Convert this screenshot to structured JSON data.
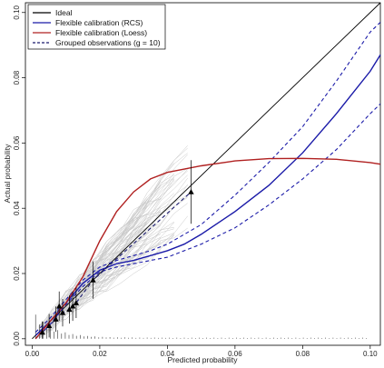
{
  "chart_data": {
    "type": "line",
    "xlabel": "Predicted probability",
    "ylabel": "Actual probability",
    "xlim": [
      -0.002,
      0.103
    ],
    "ylim": [
      -0.002,
      0.103
    ],
    "x_ticks": [
      0.0,
      0.02,
      0.04,
      0.06,
      0.08,
      0.1
    ],
    "x_tick_labels": [
      "0.00",
      "0.02",
      "0.04",
      "0.06",
      "0.08",
      "0.10"
    ],
    "y_ticks": [
      0.0,
      0.02,
      0.04,
      0.06,
      0.08,
      0.1
    ],
    "y_tick_labels": [
      "0.00",
      "0.02",
      "0.04",
      "0.06",
      "0.08",
      "0.10"
    ],
    "grid": false,
    "legend_position": "top-left",
    "legend": [
      {
        "label": "Ideal",
        "color": "#000000",
        "dash": "solid"
      },
      {
        "label": "Flexible calibration (RCS)",
        "color": "#1a1aa8",
        "dash": "solid"
      },
      {
        "label": "Flexible calibration (Loess)",
        "color": "#b02020",
        "dash": "solid"
      },
      {
        "label": "Grouped observations (g = 10)",
        "color": "#1a1a6e",
        "dash": "dashed"
      }
    ],
    "series": [
      {
        "name": "Ideal",
        "color": "#000000",
        "x": [
          0.0,
          0.103
        ],
        "y": [
          0.0,
          0.103
        ]
      },
      {
        "name": "Flexible calibration (RCS)",
        "color": "#1a1aa8",
        "x": [
          0.001,
          0.005,
          0.01,
          0.015,
          0.02,
          0.025,
          0.03,
          0.035,
          0.04,
          0.045,
          0.05,
          0.06,
          0.07,
          0.08,
          0.09,
          0.1,
          0.103
        ],
        "y": [
          0.001,
          0.005,
          0.011,
          0.017,
          0.021,
          0.023,
          0.024,
          0.0255,
          0.027,
          0.029,
          0.032,
          0.039,
          0.047,
          0.057,
          0.069,
          0.082,
          0.087
        ]
      },
      {
        "name": "Flexible calibration (RCS) lower",
        "color": "#1a1aa8",
        "x": [
          0.001,
          0.005,
          0.01,
          0.015,
          0.02,
          0.025,
          0.03,
          0.035,
          0.04,
          0.045,
          0.05,
          0.06,
          0.07,
          0.08,
          0.09,
          0.1,
          0.103
        ],
        "y": [
          0.0,
          0.004,
          0.0105,
          0.016,
          0.0205,
          0.022,
          0.023,
          0.024,
          0.025,
          0.027,
          0.029,
          0.034,
          0.041,
          0.049,
          0.058,
          0.069,
          0.072
        ]
      },
      {
        "name": "Flexible calibration (RCS) upper",
        "color": "#1a1aa8",
        "x": [
          0.001,
          0.005,
          0.01,
          0.015,
          0.02,
          0.025,
          0.03,
          0.035,
          0.04,
          0.045,
          0.05,
          0.06,
          0.07,
          0.08,
          0.09,
          0.1,
          0.103
        ],
        "y": [
          0.002,
          0.006,
          0.012,
          0.018,
          0.022,
          0.024,
          0.0255,
          0.027,
          0.029,
          0.032,
          0.035,
          0.044,
          0.054,
          0.065,
          0.079,
          0.094,
          0.097
        ]
      },
      {
        "name": "Flexible calibration (Loess)",
        "color": "#b02020",
        "x": [
          0.001,
          0.005,
          0.01,
          0.015,
          0.02,
          0.025,
          0.03,
          0.035,
          0.04,
          0.05,
          0.06,
          0.07,
          0.08,
          0.09,
          0.1,
          0.103
        ],
        "y": [
          0.0,
          0.005,
          0.011,
          0.019,
          0.03,
          0.039,
          0.045,
          0.049,
          0.051,
          0.053,
          0.0545,
          0.0552,
          0.0553,
          0.055,
          0.054,
          0.0535
        ]
      },
      {
        "name": "Grouped observations (g = 10)",
        "color": "#1a1a6e",
        "x": [
          0.003,
          0.005,
          0.007,
          0.008,
          0.009,
          0.011,
          0.012,
          0.013,
          0.018,
          0.047
        ],
        "y": [
          0.002,
          0.004,
          0.006,
          0.01,
          0.008,
          0.009,
          0.01,
          0.011,
          0.018,
          0.045
        ]
      }
    ]
  }
}
